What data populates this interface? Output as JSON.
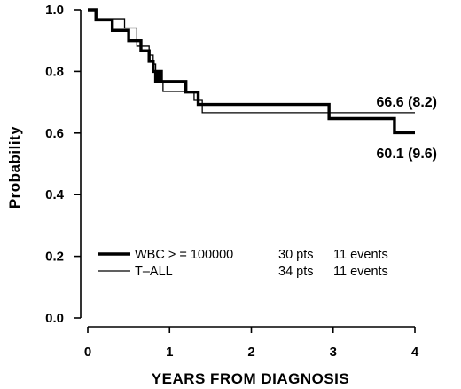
{
  "chart_data": {
    "type": "line",
    "step": true,
    "title": "",
    "xlabel": "YEARS FROM DIAGNOSIS",
    "ylabel": "Probability",
    "xlim": [
      0,
      4
    ],
    "ylim": [
      0,
      1
    ],
    "x_ticks": [
      0,
      1,
      2,
      3,
      4
    ],
    "y_ticks": [
      0.0,
      0.2,
      0.4,
      0.6,
      0.8,
      1.0
    ],
    "x_tick_labels": [
      "0",
      "1",
      "2",
      "3",
      "4"
    ],
    "y_tick_labels": [
      "0.0",
      "0.2",
      "0.4",
      "0.6",
      "0.8",
      "1.0"
    ],
    "grid": false,
    "legend_position": "bottom-left",
    "series": [
      {
        "name": "WBC > = 100000",
        "legend_label": "WBC > = 100000",
        "pts": "30 pts",
        "events": "11 events",
        "line_weight": "thick",
        "x": [
          0.0,
          0.1,
          0.3,
          0.5,
          0.65,
          0.75,
          0.8,
          0.83,
          0.86,
          0.9,
          1.2,
          1.35,
          2.95,
          3.75,
          4.0
        ],
        "y": [
          1.0,
          0.967,
          0.933,
          0.9,
          0.867,
          0.833,
          0.8,
          0.767,
          0.8,
          0.767,
          0.733,
          0.693,
          0.647,
          0.601,
          0.601
        ]
      },
      {
        "name": "T-ALL",
        "legend_label": "T–ALL",
        "pts": "34 pts",
        "events": "11 events",
        "line_weight": "thin",
        "x": [
          0.0,
          0.1,
          0.45,
          0.6,
          0.75,
          0.8,
          0.83,
          0.88,
          0.92,
          1.15,
          1.3,
          1.4,
          4.0
        ],
        "y": [
          1.0,
          0.971,
          0.941,
          0.882,
          0.853,
          0.824,
          0.794,
          0.765,
          0.735,
          0.735,
          0.706,
          0.666,
          0.666
        ]
      }
    ],
    "annotations": [
      {
        "text": "66.6 (8.2)",
        "series": "T-ALL"
      },
      {
        "text": "60.1 (9.6)",
        "series": "WBC > = 100000"
      }
    ]
  }
}
